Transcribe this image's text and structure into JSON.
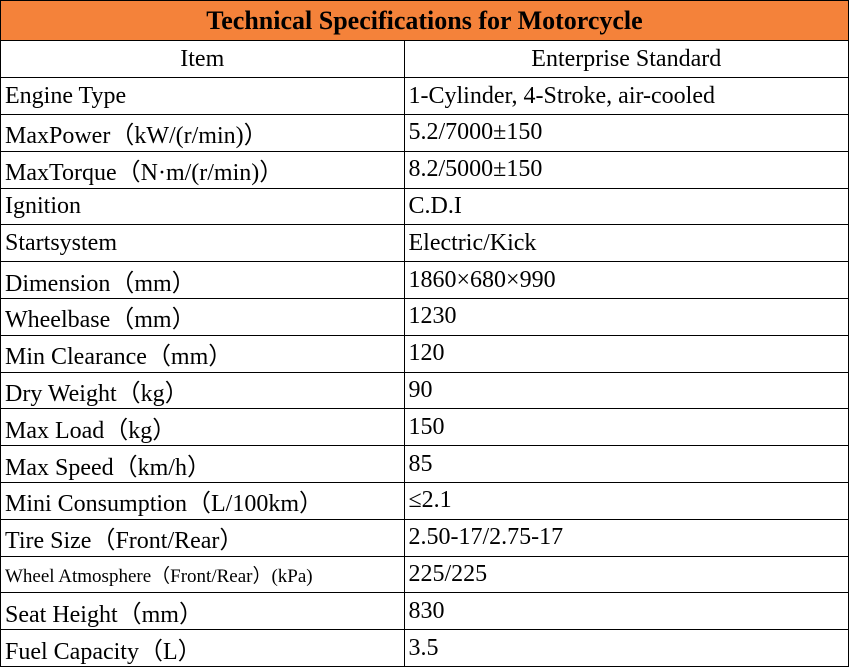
{
  "title": "Technical Specifications for Motorcycle",
  "headers": [
    "Item",
    "Enterprise Standard"
  ],
  "rows": [
    {
      "item": "Engine Type",
      "value": "1-Cylinder, 4-Stroke, air-cooled"
    },
    {
      "item": "MaxPower（kW/(r/min)）",
      "value": "5.2/7000±150"
    },
    {
      "item": "MaxTorque（N·m/(r/min)）",
      "value": "8.2/5000±150"
    },
    {
      "item": "Ignition",
      "value": "C.D.I"
    },
    {
      "item": "Startsystem",
      "value": "Electric/Kick"
    },
    {
      "item": "Dimension（mm）",
      "value": "1860×680×990"
    },
    {
      "item": "Wheelbase（mm）",
      "value": "1230"
    },
    {
      "item": "Min Clearance（mm）",
      "value": "120"
    },
    {
      "item": "Dry Weight（kg）",
      "value": "90"
    },
    {
      "item": "Max Load（kg）",
      "value": "150"
    },
    {
      "item": "Max Speed（km/h）",
      "value": "85"
    },
    {
      "item": "Mini Consumption（L/100km）",
      "value": "≤2.1"
    },
    {
      "item": "Tire Size（Front/Rear）",
      "value": "2.50-17/2.75-17"
    },
    {
      "item": "Wheel Atmosphere（Front/Rear）(kPa)",
      "value": "225/225"
    },
    {
      "item": "Seat Height（mm）",
      "value": "830"
    },
    {
      "item": "Fuel Capacity（L）",
      "value": "3.5"
    }
  ],
  "chart_data": {
    "type": "table",
    "title": "Technical Specifications for Motorcycle",
    "columns": [
      "Item",
      "Enterprise Standard"
    ],
    "rows": [
      [
        "Engine Type",
        "1-Cylinder, 4-Stroke, air-cooled"
      ],
      [
        "MaxPower（kW/(r/min)）",
        "5.2/7000±150"
      ],
      [
        "MaxTorque（N·m/(r/min)）",
        "8.2/5000±150"
      ],
      [
        "Ignition",
        "C.D.I"
      ],
      [
        "Startsystem",
        "Electric/Kick"
      ],
      [
        "Dimension（mm）",
        "1860×680×990"
      ],
      [
        "Wheelbase（mm）",
        "1230"
      ],
      [
        "Min Clearance（mm）",
        "120"
      ],
      [
        "Dry Weight（kg）",
        "90"
      ],
      [
        "Max Load（kg）",
        "150"
      ],
      [
        "Max Speed（km/h）",
        "85"
      ],
      [
        "Mini Consumption（L/100km）",
        "≤2.1"
      ],
      [
        "Tire Size（Front/Rear）",
        "2.50-17/2.75-17"
      ],
      [
        "Wheel Atmosphere（Front/Rear）(kPa)",
        "225/225"
      ],
      [
        "Seat Height（mm）",
        "830"
      ],
      [
        "Fuel Capacity（L）",
        "3.5"
      ]
    ]
  },
  "colors": {
    "title_background": "#f4823a",
    "grid": "#000000"
  }
}
